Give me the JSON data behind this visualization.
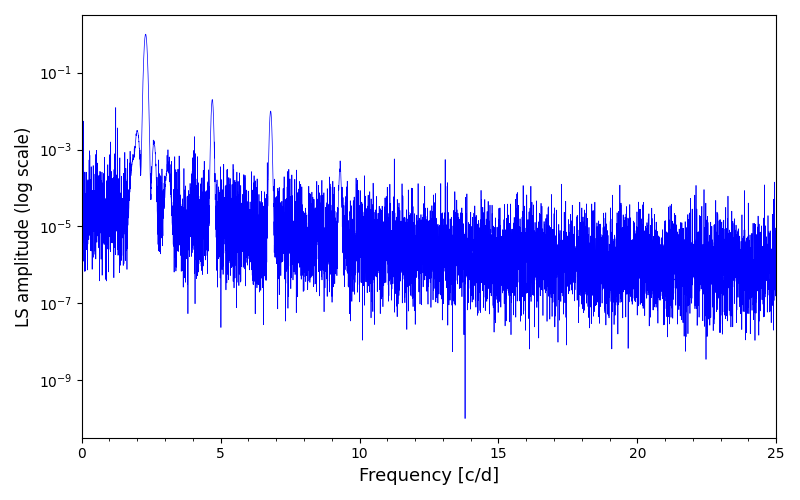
{
  "title": "",
  "xlabel": "Frequency [c/d]",
  "ylabel": "LS amplitude (log scale)",
  "xlim": [
    0,
    25
  ],
  "ylim_log": [
    -11,
    0.5
  ],
  "line_color": "#0000ff",
  "line_width": 0.5,
  "background_color": "#ffffff",
  "figsize": [
    8.0,
    5.0
  ],
  "dpi": 100,
  "seed": 12345,
  "n_points": 8000,
  "freq_max": 25.0
}
